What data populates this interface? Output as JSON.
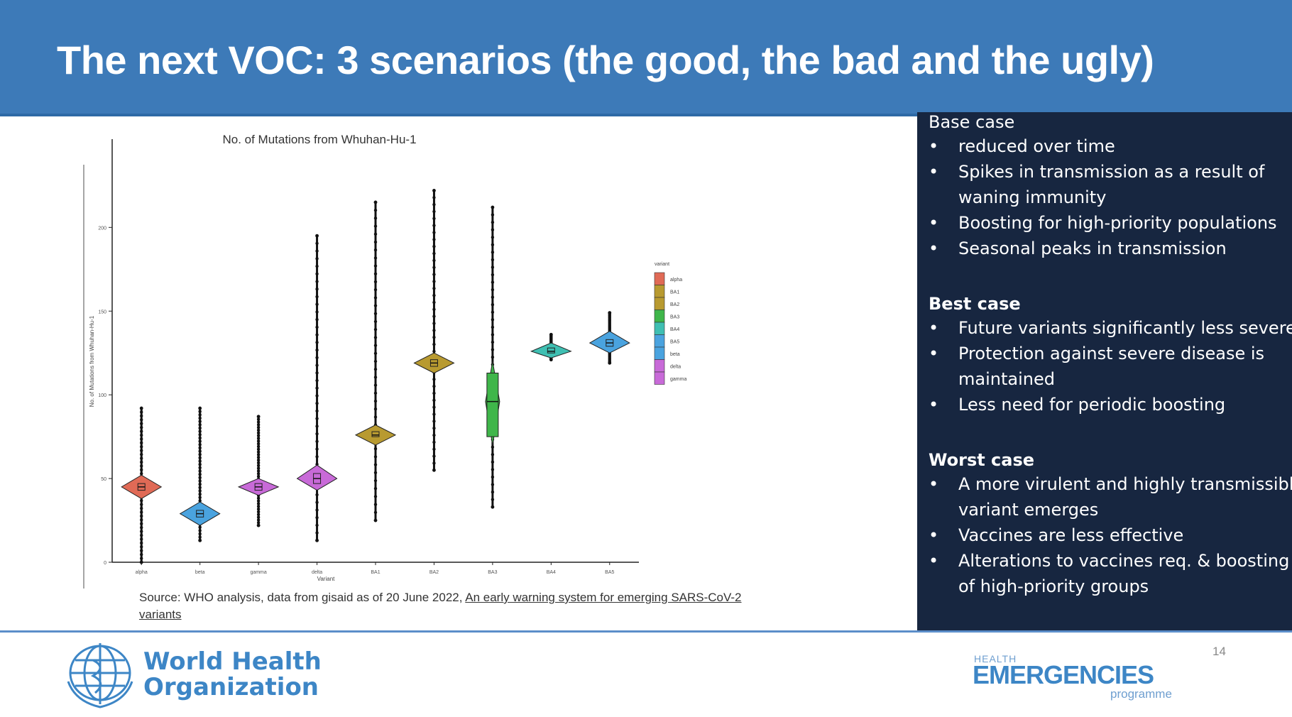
{
  "slide": {
    "title": "The next VOC: 3 scenarios (the good, the bad and the ugly)",
    "page_number": "14",
    "source_prefix": "Source: WHO analysis, data from gisaid as of 20 June 2022, ",
    "source_link": "An early warning system for emerging SARS-CoV-2 variants",
    "colors": {
      "header": "#3d7ab8",
      "panel": "#172640",
      "logo": "#3d86c6"
    }
  },
  "sections": [
    {
      "title": "Base case",
      "bold": false,
      "bullets": [
        [
          "reduced over time"
        ],
        [
          "Spikes in transmission as a result of",
          "waning immunity"
        ],
        [
          "Boosting for high-priority populations"
        ],
        [
          "Seasonal peaks in transmission"
        ]
      ]
    },
    {
      "title": "Best case",
      "bold": true,
      "bullets": [
        [
          "Future variants significantly less severe"
        ],
        [
          "Protection against severe disease is",
          "maintained"
        ],
        [
          "Less need for periodic boosting"
        ]
      ]
    },
    {
      "title": "Worst case",
      "bold": true,
      "bullets": [
        [
          "A more virulent and highly transmissible",
          "variant emerges"
        ],
        [
          "Vaccines are less effective"
        ],
        [
          "Alterations to vaccines req. & boosting",
          "of high-priority groups"
        ]
      ]
    }
  ],
  "footer": {
    "who_line1": "World Health",
    "who_line2": "Organization",
    "he_small": "HEALTH",
    "he_big": "EMERGENCIES",
    "he_prog": "programme"
  },
  "chart_data": {
    "type": "violin",
    "title": "No. of Mutations from Whuhan-Hu-1",
    "xlabel": "Variant",
    "ylabel": "No. of Mutations from Whuhan-Hu-1",
    "ylim": [
      0,
      240
    ],
    "yticks": [
      0,
      50,
      100,
      150,
      200
    ],
    "legend_title": "variant",
    "legend": [
      "alpha",
      "BA1",
      "BA2",
      "BA3",
      "BA4",
      "BA5",
      "beta",
      "delta",
      "gamma"
    ],
    "categories": [
      "alpha",
      "beta",
      "gamma",
      "delta",
      "BA1",
      "BA2",
      "BA3",
      "BA4",
      "BA5"
    ],
    "series": [
      {
        "category": "alpha",
        "color": "#e06a56",
        "median": 45,
        "q1": 43,
        "q3": 47,
        "min": 0,
        "max": 92,
        "body_low": 38,
        "body_high": 52
      },
      {
        "category": "beta",
        "color": "#4aa3df",
        "median": 29,
        "q1": 27,
        "q3": 31,
        "min": 13,
        "max": 92,
        "body_low": 22,
        "body_high": 36
      },
      {
        "category": "gamma",
        "color": "#c86ad8",
        "median": 45,
        "q1": 43,
        "q3": 47,
        "min": 22,
        "max": 87,
        "body_low": 40,
        "body_high": 50
      },
      {
        "category": "delta",
        "color": "#c86ad8",
        "median": 50,
        "q1": 47,
        "q3": 53,
        "min": 13,
        "max": 195,
        "body_low": 43,
        "body_high": 58
      },
      {
        "category": "BA1",
        "color": "#b89a30",
        "median": 76,
        "q1": 75,
        "q3": 78,
        "min": 25,
        "max": 215,
        "body_low": 70,
        "body_high": 82
      },
      {
        "category": "BA2",
        "color": "#b89a30",
        "median": 119,
        "q1": 117,
        "q3": 121,
        "min": 55,
        "max": 222,
        "body_low": 113,
        "body_high": 125
      },
      {
        "category": "BA3",
        "color": "#3fb64a",
        "median": 96,
        "q1": 75,
        "q3": 113,
        "min": 33,
        "max": 212,
        "body_low": 70,
        "body_high": 120
      },
      {
        "category": "BA4",
        "color": "#3fbfb2",
        "median": 126,
        "q1": 125,
        "q3": 128,
        "min": 121,
        "max": 136,
        "body_low": 122,
        "body_high": 131
      },
      {
        "category": "BA5",
        "color": "#4aa3df",
        "median": 131,
        "q1": 129,
        "q3": 133,
        "min": 119,
        "max": 149,
        "body_low": 125,
        "body_high": 138
      }
    ]
  }
}
